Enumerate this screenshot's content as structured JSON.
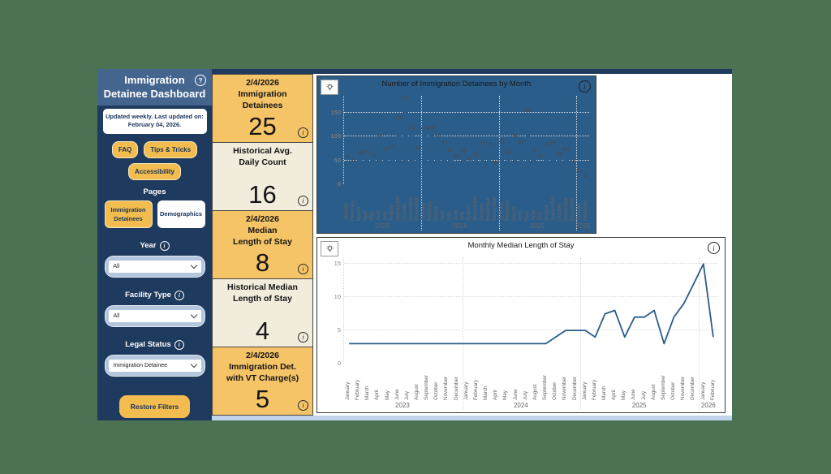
{
  "icons": {
    "help": "?",
    "info": "i",
    "chevron": "chevron-down",
    "lightbulb": "insights-lightbulb"
  },
  "colors": {
    "background_green": "#4C7254",
    "sidebar_navy": "#1E3A5E",
    "sidebar_header_blue": "#44658E",
    "gold": "#F3BC4F",
    "kpi_gold": "#F5C466",
    "kpi_cream": "#F1ECDB",
    "chart_blue": "#2B5D8A",
    "bottom_band_blue": "#C0D4EA"
  },
  "sidebar": {
    "title_line1": "Immigration",
    "title_line2": "Detainee Dashboard",
    "updated_note_line1": "Updated weekly. Last updated on:",
    "updated_note_line2": "February 04, 2026.",
    "buttons": {
      "faq": "FAQ",
      "tips": "Tips & Tricks",
      "accessibility": "Accessibility",
      "restore": "Restore Filters"
    },
    "pages_label": "Pages",
    "page_buttons": [
      {
        "label": "Immigration Detainees",
        "active": true
      },
      {
        "label": "Demographics",
        "active": false
      }
    ],
    "filters": [
      {
        "label": "Year",
        "value": "All"
      },
      {
        "label": "Facility Type",
        "value": "All"
      },
      {
        "label": "Legal Status",
        "value": "Immigration Detainee"
      }
    ]
  },
  "kpis": [
    {
      "style": "gold",
      "title_lines": [
        "2/4/2026",
        "Immigration",
        "Detainees"
      ],
      "value": "25"
    },
    {
      "style": "cream",
      "title_lines": [
        "Historical Avg.",
        "Daily Count"
      ],
      "value": "16"
    },
    {
      "style": "gold",
      "title_lines": [
        "2/4/2026",
        "Median",
        "Length of Stay"
      ],
      "value": "8"
    },
    {
      "style": "cream",
      "title_lines": [
        "Historical Median",
        "Length of Stay"
      ],
      "value": "4"
    },
    {
      "style": "gold",
      "title_lines": [
        "2/4/2026",
        "Immigration Det.",
        "with VT Charge(s)"
      ],
      "value": "5"
    }
  ],
  "chart_data": [
    {
      "type": "bar",
      "title": "Number of Immigration Detainees by Month",
      "categories": [
        "January",
        "February",
        "March",
        "April",
        "May",
        "June",
        "July",
        "August",
        "September",
        "October",
        "November",
        "December",
        "January",
        "February",
        "March",
        "April",
        "May",
        "June",
        "July",
        "August",
        "September",
        "October",
        "November",
        "December",
        "January",
        "February",
        "March",
        "April",
        "May",
        "June",
        "July",
        "August",
        "September",
        "October",
        "November",
        "December",
        "January",
        "February"
      ],
      "year_groups": [
        {
          "label": "2023",
          "count": 12
        },
        {
          "label": "2024",
          "count": 12
        },
        {
          "label": "2025",
          "count": 12
        },
        {
          "label": "2026",
          "count": 2
        }
      ],
      "values": [
        49,
        41,
        58,
        61,
        53,
        94,
        65,
        70,
        130,
        171,
        111,
        68,
        107,
        110,
        93,
        77,
        63,
        49,
        61,
        45,
        55,
        78,
        75,
        35,
        81,
        58,
        94,
        80,
        146,
        62,
        50,
        74,
        80,
        55,
        64,
        41,
        21,
        11
      ],
      "yticks": [
        0,
        50,
        100,
        150
      ],
      "axis_max": 185,
      "ylabel": "",
      "xlabel": "",
      "grid": "dotted horizontal",
      "color": "#2B5D8A",
      "data_labels": true
    },
    {
      "type": "line",
      "title": "Monthly Median Length of Stay",
      "categories": [
        "January",
        "February",
        "March",
        "April",
        "May",
        "June",
        "July",
        "August",
        "September",
        "October",
        "November",
        "December",
        "January",
        "February",
        "March",
        "April",
        "May",
        "June",
        "July",
        "August",
        "September",
        "October",
        "November",
        "December",
        "January",
        "February",
        "March",
        "April",
        "May",
        "June",
        "July",
        "August",
        "September",
        "October",
        "November",
        "December",
        "January",
        "February"
      ],
      "year_groups": [
        {
          "label": "2023",
          "count": 12
        },
        {
          "label": "2024",
          "count": 12
        },
        {
          "label": "2025",
          "count": 12
        },
        {
          "label": "2026",
          "count": 2
        }
      ],
      "values": [
        3,
        3,
        3,
        3,
        3,
        3,
        3,
        3,
        3,
        3,
        3,
        3,
        3,
        3,
        3,
        3,
        3,
        3,
        3,
        3,
        3,
        4,
        5,
        5,
        5,
        4,
        7.5,
        8,
        4,
        7,
        7,
        8,
        3,
        7,
        9,
        12,
        15,
        4
      ],
      "yticks": [
        0,
        5,
        10,
        15
      ],
      "axis_max": 16,
      "ylabel": "",
      "xlabel": "",
      "grid": "dotted horizontal",
      "color": "#2B5D8A",
      "data_labels": false
    }
  ]
}
